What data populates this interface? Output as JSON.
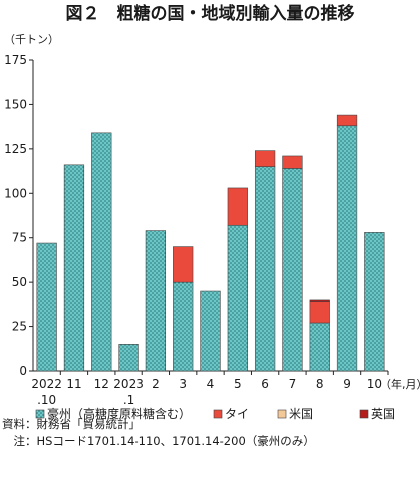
{
  "chart_data": {
    "type": "bar",
    "stacked": true,
    "title": "図２　粗糖の国・地域別輸入量の推移",
    "ylabel": "（千トン）",
    "xlabel": "（年,月）",
    "ylim": [
      0,
      175
    ],
    "yticks": [
      0,
      25,
      50,
      75,
      100,
      125,
      150,
      175
    ],
    "categories": [
      {
        "line1": "2022",
        "line2": ".10"
      },
      {
        "line1": "11",
        "line2": ""
      },
      {
        "line1": "12",
        "line2": ""
      },
      {
        "line1": "2023",
        "line2": ".1"
      },
      {
        "line1": "2",
        "line2": ""
      },
      {
        "line1": "3",
        "line2": ""
      },
      {
        "line1": "4",
        "line2": ""
      },
      {
        "line1": "5",
        "line2": ""
      },
      {
        "line1": "6",
        "line2": ""
      },
      {
        "line1": "7",
        "line2": ""
      },
      {
        "line1": "8",
        "line2": ""
      },
      {
        "line1": "9",
        "line2": ""
      },
      {
        "line1": "10",
        "line2": ""
      }
    ],
    "series": [
      {
        "name": "豪州（高糖度原料糖含む）",
        "color": "#5bbdbd",
        "pattern": "dotted",
        "values": [
          72,
          116,
          134,
          15,
          79,
          50,
          45,
          82,
          115,
          114,
          27,
          138,
          78
        ]
      },
      {
        "name": "タイ",
        "color": "#e94a3c",
        "values": [
          0,
          0,
          0,
          0,
          0,
          20,
          0,
          21,
          9,
          7,
          12,
          6,
          0
        ]
      },
      {
        "name": "米国",
        "color": "#f4c99a",
        "values": [
          0,
          0,
          0,
          0,
          0,
          0,
          0,
          0,
          0,
          0,
          0,
          0,
          0
        ]
      },
      {
        "name": "英国",
        "color": "#b51c1c",
        "values": [
          0,
          0,
          0,
          0,
          0,
          0,
          0,
          0,
          0,
          0,
          1,
          0,
          0
        ]
      }
    ],
    "grid": false,
    "legend_position": "bottom"
  },
  "footnotes": {
    "source": "資料：財務省「貿易統計」",
    "note": "　注：HSコード1701.14-110、1701.14-200（豪州のみ）"
  }
}
